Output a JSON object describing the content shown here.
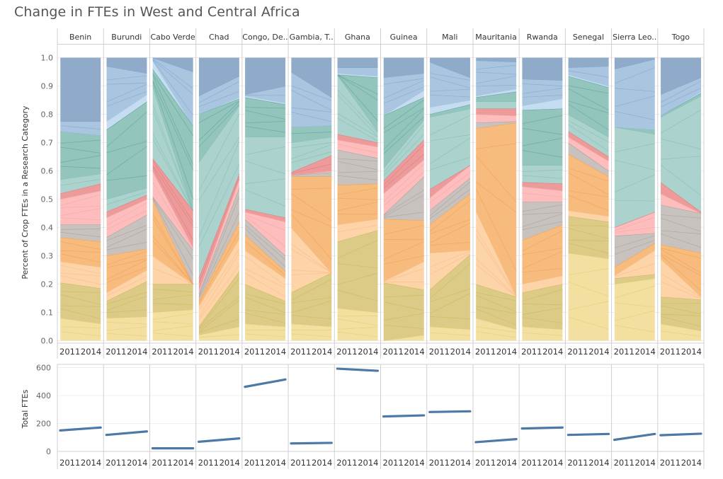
{
  "title": "Change in FTEs in West and Central Africa",
  "chart_data": [
    {
      "type": "area",
      "subtype": "stacked-percent-area (small multiples)",
      "ylabel": "Percent of Crop FTEs in a Research Category",
      "ylim": [
        0,
        1
      ],
      "yticks": [
        "0.0",
        "0.1",
        "0.2",
        "0.3",
        "0.4",
        "0.5",
        "0.6",
        "0.7",
        "0.8",
        "0.9",
        "1.0"
      ],
      "x": [
        "2011",
        "2014"
      ],
      "grid": true,
      "band_names": [
        "yellow",
        "olive",
        "light-orange",
        "orange",
        "gray",
        "pink",
        "red",
        "teal-light",
        "teal-dark",
        "light-blue",
        "blue",
        "steel-blue"
      ],
      "band_colors": [
        "#f3df9f",
        "#dccb86",
        "#fdd3a8",
        "#f7bb7e",
        "#c8c2bf",
        "#fdbdbd",
        "#ec9a9a",
        "#abd2cc",
        "#94c5bd",
        "#c6ddf1",
        "#aac5df",
        "#8fabc9"
      ],
      "band_line_colors": [
        "#e2c96c",
        "#c9b251",
        "#f9b780",
        "#f29a46",
        "#9f9894",
        "#f2a0a0",
        "#dc7474",
        "#7bbab0",
        "#4e9d91",
        "#9fc4e4",
        "#7b9fc9",
        "#5f85b0"
      ],
      "countries": [
        {
          "name": "Benin",
          "tops2011": [
            0.08,
            0.205,
            0.28,
            0.365,
            0.41,
            0.5,
            0.52,
            0.57,
            0.74,
            0.74,
            0.775,
            1.0
          ],
          "tops2014": [
            0.06,
            0.185,
            0.26,
            0.35,
            0.41,
            0.53,
            0.555,
            0.59,
            0.725,
            0.725,
            0.775,
            1.0
          ]
        },
        {
          "name": "Burundi",
          "tops2011": [
            0.08,
            0.14,
            0.17,
            0.3,
            0.365,
            0.435,
            0.455,
            0.5,
            0.745,
            0.775,
            0.97,
            1.0
          ],
          "tops2014": [
            0.085,
            0.21,
            0.25,
            0.325,
            0.445,
            0.5,
            0.515,
            0.54,
            0.845,
            0.87,
            0.945,
            1.0
          ]
        },
        {
          "name": "Cabo Verde",
          "tops2011": [
            0.1,
            0.2,
            0.3,
            0.5,
            0.51,
            0.6,
            0.645,
            0.9,
            0.96,
            0.99,
            1.0,
            1.0
          ],
          "tops2014": [
            0.11,
            0.2,
            0.2,
            0.2,
            0.32,
            0.33,
            0.46,
            0.46,
            0.76,
            0.76,
            0.95,
            1.0
          ]
        },
        {
          "name": "Chad",
          "tops2011": [
            0.02,
            0.05,
            0.12,
            0.14,
            0.165,
            0.175,
            0.22,
            0.63,
            0.8,
            0.8,
            0.865,
            1.0
          ],
          "tops2014": [
            0.05,
            0.245,
            0.36,
            0.42,
            0.54,
            0.57,
            0.59,
            0.83,
            0.855,
            0.86,
            0.935,
            1.0
          ]
        },
        {
          "name": "Congo, De..",
          "tops2011": [
            0.06,
            0.2,
            0.32,
            0.375,
            0.43,
            0.455,
            0.465,
            0.72,
            0.86,
            0.865,
            0.87,
            1.0
          ],
          "tops2014": [
            0.05,
            0.14,
            0.22,
            0.245,
            0.3,
            0.42,
            0.435,
            0.72,
            0.835,
            0.84,
            0.9,
            1.0
          ]
        },
        {
          "name": "Gambia, T..",
          "tops2011": [
            0.06,
            0.17,
            0.4,
            0.58,
            0.585,
            0.585,
            0.595,
            0.7,
            0.755,
            0.755,
            0.95,
            1.0
          ],
          "tops2014": [
            0.05,
            0.24,
            0.24,
            0.58,
            0.595,
            0.6,
            0.655,
            0.72,
            0.76,
            0.76,
            0.86,
            1.0
          ]
        },
        {
          "name": "Ghana",
          "tops2011": [
            0.115,
            0.35,
            0.41,
            0.55,
            0.675,
            0.71,
            0.73,
            0.94,
            0.94,
            0.945,
            0.965,
            1.0
          ],
          "tops2014": [
            0.1,
            0.39,
            0.43,
            0.555,
            0.645,
            0.685,
            0.7,
            0.74,
            0.93,
            0.935,
            0.965,
            1.0
          ]
        },
        {
          "name": "Guinea",
          "tops2011": [
            0.0,
            0.205,
            0.21,
            0.43,
            0.445,
            0.52,
            0.565,
            0.61,
            0.795,
            0.795,
            0.93,
            1.0
          ],
          "tops2014": [
            0.02,
            0.18,
            0.28,
            0.425,
            0.58,
            0.64,
            0.71,
            0.78,
            0.86,
            0.885,
            0.945,
            1.0
          ]
        },
        {
          "name": "Mali",
          "tops2011": [
            0.05,
            0.18,
            0.31,
            0.41,
            0.46,
            0.505,
            0.535,
            0.79,
            0.8,
            0.825,
            0.985,
            1.0
          ],
          "tops2014": [
            0.04,
            0.305,
            0.32,
            0.52,
            0.575,
            0.62,
            0.62,
            0.82,
            0.835,
            0.85,
            0.93,
            1.0
          ]
        },
        {
          "name": "Mauritania",
          "tops2011": [
            0.08,
            0.2,
            0.46,
            0.75,
            0.77,
            0.8,
            0.82,
            0.845,
            0.86,
            0.865,
            0.99,
            1.0
          ],
          "tops2014": [
            0.04,
            0.155,
            0.16,
            0.77,
            0.775,
            0.795,
            0.82,
            0.845,
            0.88,
            0.89,
            0.985,
            1.0
          ]
        },
        {
          "name": "Rwanda",
          "tops2011": [
            0.05,
            0.17,
            0.2,
            0.355,
            0.49,
            0.545,
            0.56,
            0.62,
            0.815,
            0.83,
            0.925,
            1.0
          ],
          "tops2014": [
            0.04,
            0.2,
            0.23,
            0.41,
            0.49,
            0.53,
            0.555,
            0.62,
            0.82,
            0.855,
            0.92,
            1.0
          ]
        },
        {
          "name": "Senegal",
          "tops2011": [
            0.31,
            0.44,
            0.46,
            0.66,
            0.7,
            0.72,
            0.74,
            0.8,
            0.935,
            0.94,
            0.965,
            1.0
          ],
          "tops2014": [
            0.29,
            0.42,
            0.44,
            0.58,
            0.6,
            0.635,
            0.65,
            0.72,
            0.895,
            0.9,
            0.97,
            1.0
          ]
        },
        {
          "name": "Sierra Leo..",
          "tops2011": [
            0.2,
            0.22,
            0.23,
            0.26,
            0.37,
            0.4,
            0.4,
            0.755,
            0.755,
            0.755,
            0.96,
            1.0
          ],
          "tops2014": [
            0.22,
            0.235,
            0.32,
            0.345,
            0.38,
            0.455,
            0.455,
            0.73,
            0.745,
            0.745,
            0.995,
            1.0
          ]
        },
        {
          "name": "Togo",
          "tops2011": [
            0.06,
            0.155,
            0.29,
            0.34,
            0.48,
            0.52,
            0.56,
            0.79,
            0.795,
            0.795,
            0.87,
            1.0
          ],
          "tops2014": [
            0.035,
            0.145,
            0.155,
            0.31,
            0.45,
            0.45,
            0.455,
            0.865,
            0.875,
            0.88,
            0.93,
            1.0
          ]
        }
      ],
      "inner_line_count_note": "thin lines subdivide bands into sub-categories"
    },
    {
      "type": "line",
      "ylabel": "Total FTEs",
      "ylim": [
        0,
        620
      ],
      "yticks": [
        "0",
        "200",
        "400",
        "600"
      ],
      "x": [
        "2011",
        "2014"
      ],
      "grid": true,
      "line_color": "#4e79a7",
      "series": [
        {
          "name": "Benin",
          "values": [
            150,
            171
          ]
        },
        {
          "name": "Burundi",
          "values": [
            118,
            143
          ]
        },
        {
          "name": "Cabo Verde",
          "values": [
            22,
            22
          ]
        },
        {
          "name": "Chad",
          "values": [
            69,
            93
          ]
        },
        {
          "name": "Congo, De..",
          "values": [
            462,
            515
          ]
        },
        {
          "name": "Gambia, T..",
          "values": [
            57,
            61
          ]
        },
        {
          "name": "Ghana",
          "values": [
            592,
            577
          ]
        },
        {
          "name": "Guinea",
          "values": [
            250,
            258
          ]
        },
        {
          "name": "Mali",
          "values": [
            282,
            287
          ]
        },
        {
          "name": "Mauritania",
          "values": [
            66,
            88
          ]
        },
        {
          "name": "Rwanda",
          "values": [
            164,
            171
          ]
        },
        {
          "name": "Senegal",
          "values": [
            118,
            125
          ]
        },
        {
          "name": "Sierra Leo..",
          "values": [
            83,
            125
          ]
        },
        {
          "name": "Togo",
          "values": [
            116,
            127
          ]
        }
      ]
    }
  ]
}
